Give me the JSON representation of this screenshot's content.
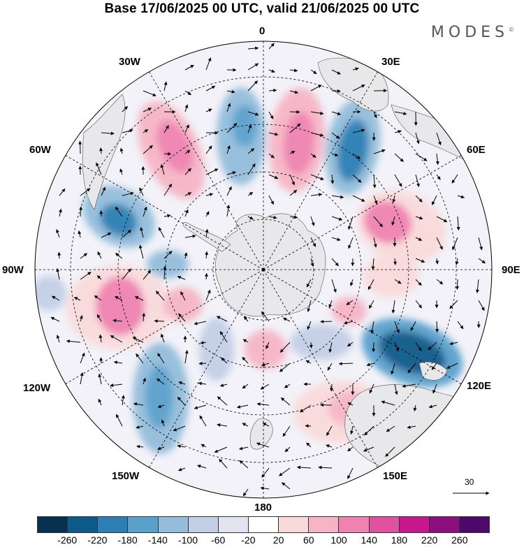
{
  "title": "Base 17/06/2025 00 UTC, valid 21/06/2025 00 UTC",
  "logo": "MODES",
  "logo_mark": "©",
  "map": {
    "projection": "south-polar-stereographic",
    "longitude_labels": {
      "lon_0": "0",
      "lon_30e": "30E",
      "lon_60e": "60E",
      "lon_90e": "90E",
      "lon_120e": "120E",
      "lon_150e": "150E",
      "lon_180": "180",
      "lon_150w": "150W",
      "lon_120w": "120W",
      "lon_90w": "90W",
      "lon_60w": "60W",
      "lon_30w": "30W"
    },
    "reference_vector": "30",
    "colors": {
      "land": "#ececec",
      "grid": "#000000"
    }
  },
  "colorbar": {
    "colors": [
      "#08304f",
      "#0a5a8a",
      "#2c7fb4",
      "#5aa0cc",
      "#93bddb",
      "#c3cfe6",
      "#e3e3f0",
      "#ffffff",
      "#f9dada",
      "#f6b5c6",
      "#ef82b0",
      "#e052a0",
      "#c8178c",
      "#8c0f7d",
      "#4d0a6a"
    ],
    "ticks": [
      "-260",
      "-220",
      "-180",
      "-140",
      "-100",
      "-60",
      "-20",
      "20",
      "60",
      "100",
      "140",
      "180",
      "220",
      "260"
    ]
  }
}
